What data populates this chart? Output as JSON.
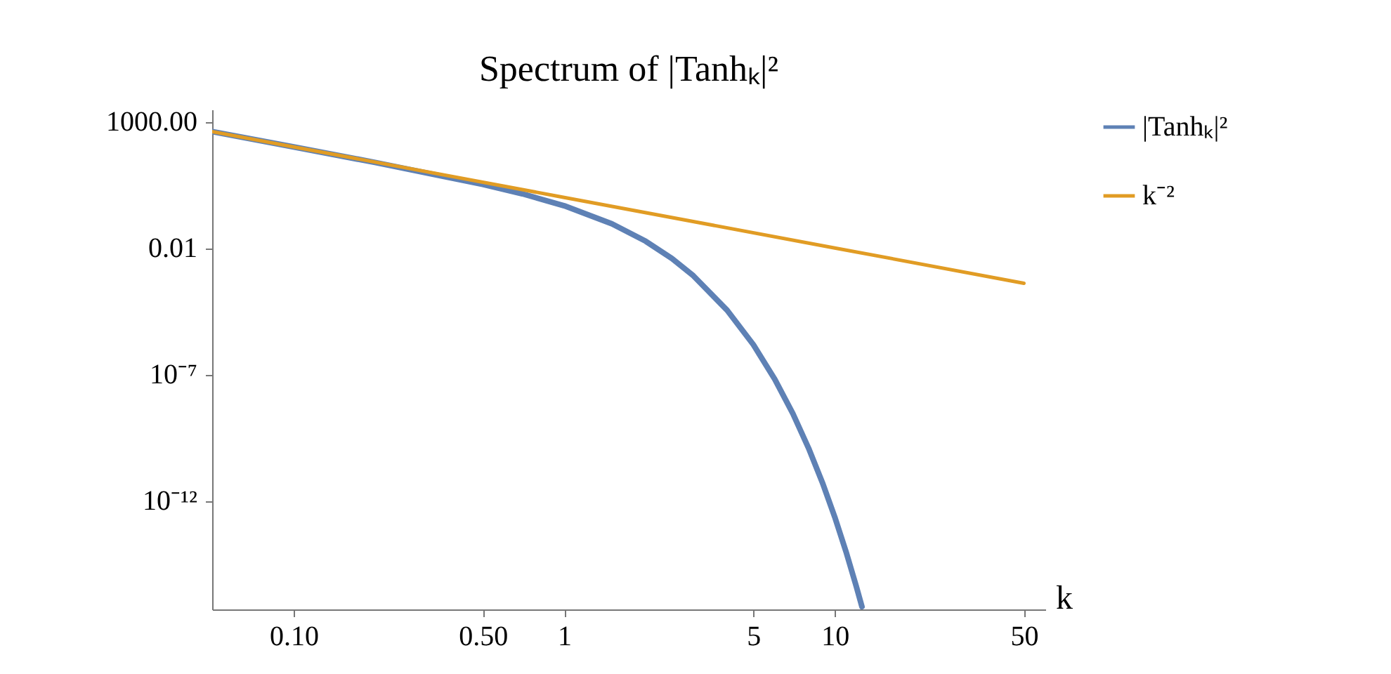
{
  "chart_data": {
    "type": "line",
    "title": "Spectrum of |Tanhₖ|²",
    "xlabel": "k",
    "log": "xy",
    "xlim": [
      0.05,
      60
    ],
    "ylim": [
      5e-17,
      3000
    ],
    "xticks": [
      {
        "value": 0.1,
        "label": "0.10"
      },
      {
        "value": 0.5,
        "label": "0.50"
      },
      1,
      5,
      10,
      50
    ],
    "yticks": [
      {
        "value": 1000,
        "label": "1000.00"
      },
      0.01,
      {
        "value": 1e-07,
        "label": "10⁻⁷"
      },
      {
        "value": 1e-12,
        "label": "10⁻¹²"
      }
    ],
    "grid": false,
    "legend": "right",
    "line_style": "solid",
    "marker": "none",
    "series": [
      {
        "name": "|Tanhₖ|²",
        "color": "#5e81b5",
        "x": [
          0.05,
          0.1,
          0.2,
          0.5,
          0.7,
          1,
          1.5,
          2,
          2.5,
          3,
          4,
          5,
          6,
          7,
          8,
          9,
          10,
          11,
          12,
          12.6
        ],
        "values": [
          399,
          99.2,
          24.2,
          3.27,
          1.39,
          0.466,
          0.0903,
          0.0185,
          0.00383,
          0.000797,
          3.44e-05,
          1.49e-06,
          6.43e-08,
          2.78e-09,
          1.2e-10,
          5.19e-12,
          2.24e-13,
          9.69e-15,
          4.19e-16,
          6.4e-17
        ]
      },
      {
        "name": "k⁻²",
        "color": "#e19c24",
        "x": [
          0.05,
          0.1,
          1,
          10,
          50
        ],
        "values": [
          400,
          100,
          1,
          0.01,
          0.0004
        ]
      }
    ]
  }
}
